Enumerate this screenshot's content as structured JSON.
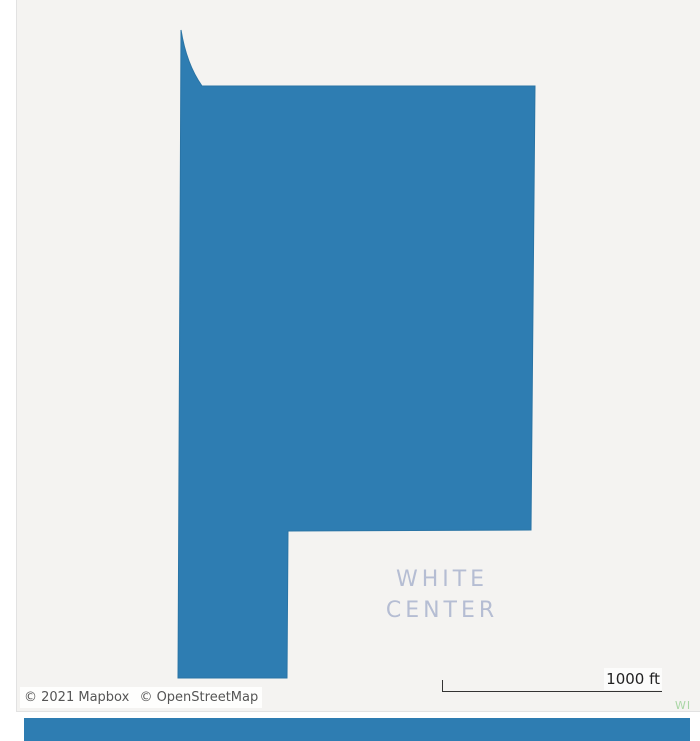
{
  "map": {
    "region_fill": "#2e7db2",
    "background": "#f4f3f1",
    "place_label": [
      "WHITE",
      "CENTER"
    ],
    "place_label_partial": "WI",
    "attribution": {
      "mapbox": "© 2021 Mapbox",
      "osm": "© OpenStreetMap"
    },
    "scale": {
      "label": "1000 ft"
    }
  }
}
